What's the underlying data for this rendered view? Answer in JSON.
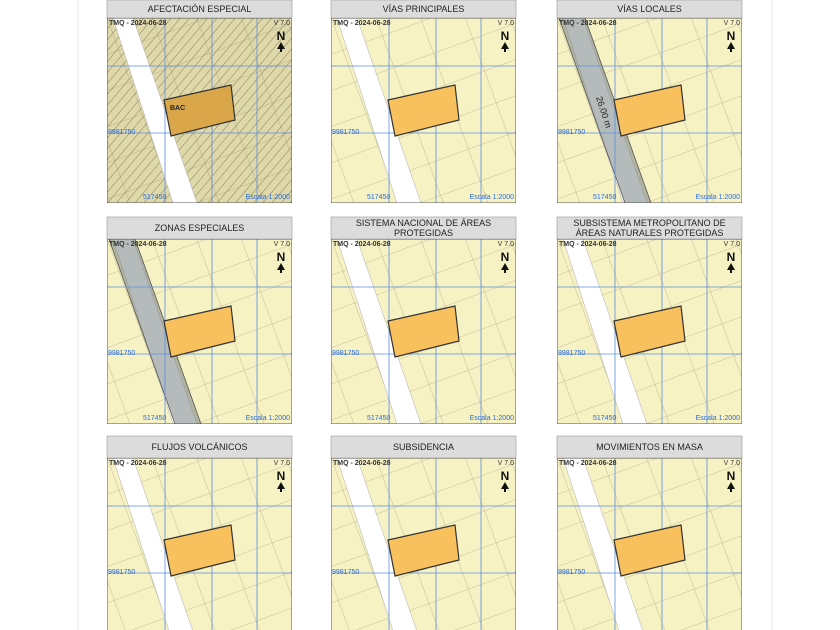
{
  "map_labels": {
    "date": "TMQ - 2024-06-28",
    "version": "V 7.0",
    "north": "N",
    "northing": "9981750",
    "easting": "517450",
    "scale": "Escala 1:2000"
  },
  "panels": [
    {
      "title": "AFECTACIÓN ESPECIAL",
      "label": "BAC"
    },
    {
      "title": "VÍAS PRINCIPALES"
    },
    {
      "title": "VÍAS LOCALES",
      "label": "26.00 m"
    },
    {
      "title": "ZONAS ESPECIALES"
    },
    {
      "title": "SISTEMA NACIONAL DE ÁREAS PROTEGIDAS"
    },
    {
      "title": "SUBSISTEMA METROPOLITANO DE ÁREAS NATURALES PROTEGIDAS"
    },
    {
      "title": "FLUJOS VOLCÁNICOS"
    },
    {
      "title": "SUBSIDENCIA"
    },
    {
      "title": "MOVIMIENTOS EN MASA"
    }
  ]
}
